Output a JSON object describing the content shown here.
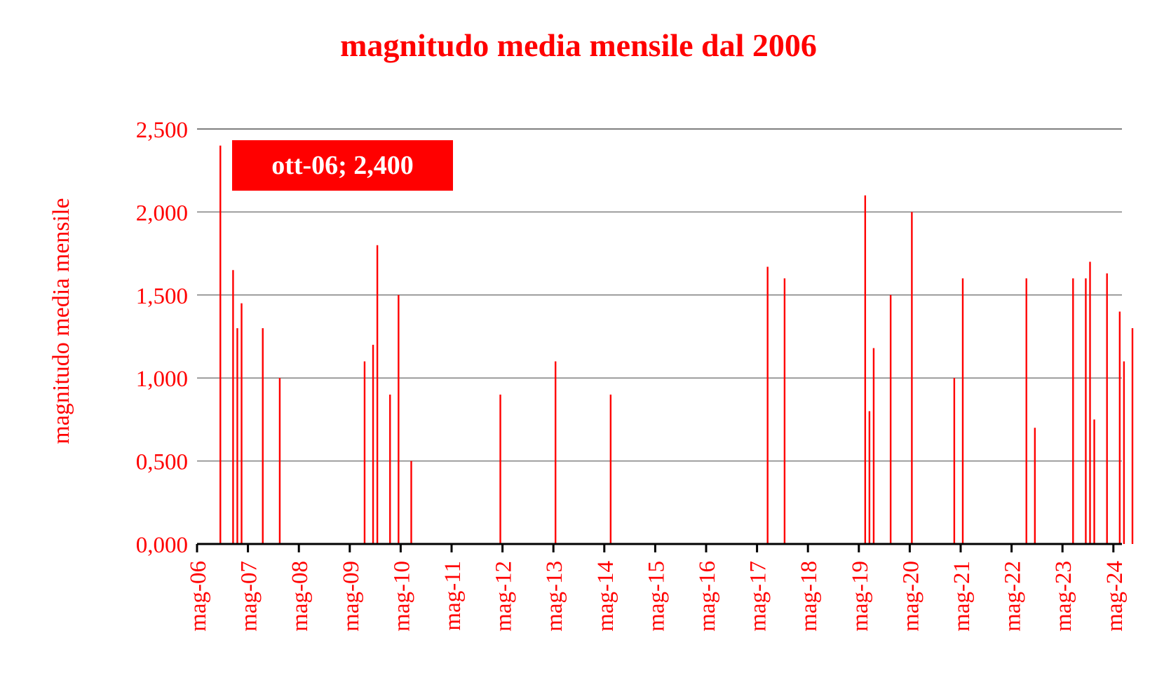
{
  "chart_data": {
    "type": "bar",
    "title": "magnitudo media mensile dal 2006",
    "xlabel": "",
    "ylabel": "magnitudo media mensile",
    "ylim": [
      0,
      2.5
    ],
    "yticks": [
      "0,000",
      "0,500",
      "1,000",
      "1,500",
      "2,000",
      "2,500"
    ],
    "xticks": [
      "mag-06",
      "mag-07",
      "mag-08",
      "mag-09",
      "mag-10",
      "mag-11",
      "mag-12",
      "mag-13",
      "mag-14",
      "mag-15",
      "mag-16",
      "mag-17",
      "mag-18",
      "mag-19",
      "mag-20",
      "mag-21",
      "mag-22",
      "mag-23",
      "mag-24"
    ],
    "grid": true,
    "annotation": "ott-06; 2,400",
    "color": "#ff0000",
    "bars": [
      {
        "month": "ott-06",
        "value": 2.4
      },
      {
        "month": "gen-07",
        "value": 1.65
      },
      {
        "month": "feb-07",
        "value": 1.3
      },
      {
        "month": "mar-07",
        "value": 1.45
      },
      {
        "month": "ago-07",
        "value": 1.3
      },
      {
        "month": "dic-07",
        "value": 1.0
      },
      {
        "month": "ago-09",
        "value": 1.1
      },
      {
        "month": "ott-09",
        "value": 1.2
      },
      {
        "month": "nov-09",
        "value": 1.8
      },
      {
        "month": "feb-10",
        "value": 0.9
      },
      {
        "month": "apr-10",
        "value": 1.5
      },
      {
        "month": "lug-10",
        "value": 0.5
      },
      {
        "month": "apr-12",
        "value": 0.9
      },
      {
        "month": "mag-13",
        "value": 1.1
      },
      {
        "month": "giu-14",
        "value": 0.9
      },
      {
        "month": "lug-17",
        "value": 1.67
      },
      {
        "month": "nov-17",
        "value": 1.6
      },
      {
        "month": "giu-19",
        "value": 2.1
      },
      {
        "month": "lug-19",
        "value": 0.8
      },
      {
        "month": "ago-19",
        "value": 1.18
      },
      {
        "month": "dic-19",
        "value": 1.5
      },
      {
        "month": "mag-20",
        "value": 2.0
      },
      {
        "month": "mar-21",
        "value": 1.0
      },
      {
        "month": "mag-21",
        "value": 1.6
      },
      {
        "month": "ago-22",
        "value": 1.6
      },
      {
        "month": "ott-22",
        "value": 0.7
      },
      {
        "month": "lug-23",
        "value": 1.6
      },
      {
        "month": "ott-23",
        "value": 1.6
      },
      {
        "month": "nov-23",
        "value": 1.7
      },
      {
        "month": "dic-23",
        "value": 0.75
      },
      {
        "month": "mar-24",
        "value": 1.63
      },
      {
        "month": "giu-24",
        "value": 1.4
      },
      {
        "month": "lug-24",
        "value": 1.1
      },
      {
        "month": "set-24",
        "value": 1.3
      }
    ]
  }
}
